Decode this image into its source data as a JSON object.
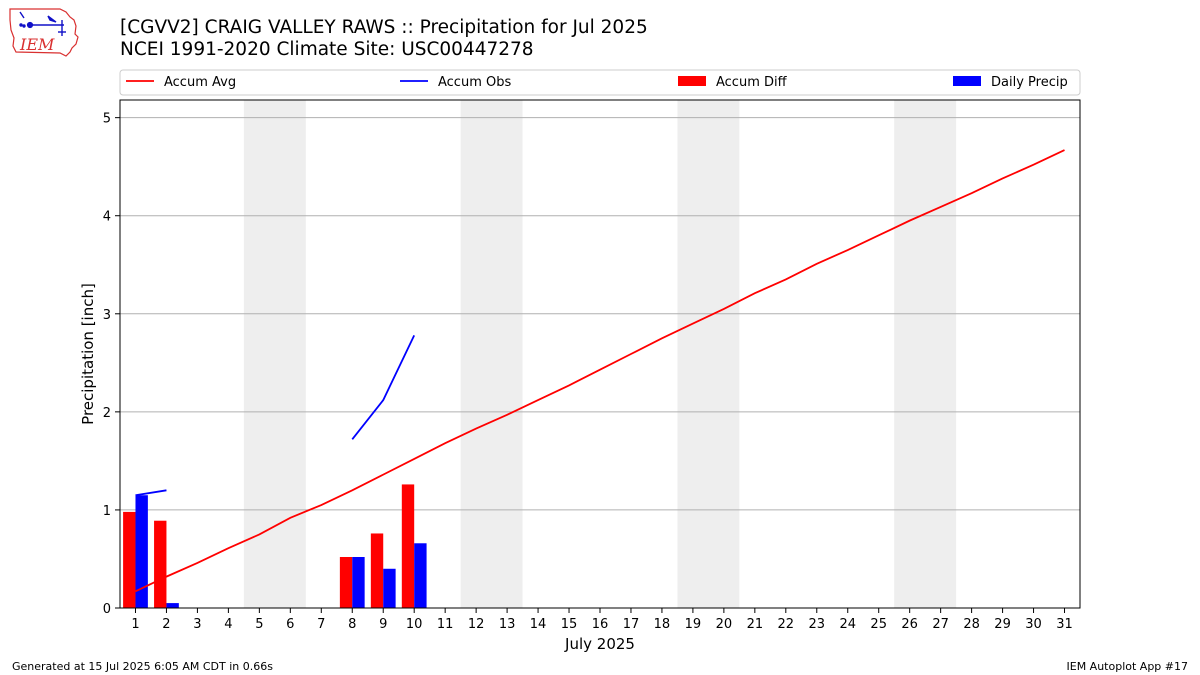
{
  "header": {
    "title_line1": "[CGVV2] CRAIG VALLEY RAWS :: Precipitation for Jul 2025",
    "title_line2": "NCEI 1991-2020 Climate Site: USC00447278",
    "logo_text": "IEM"
  },
  "footer": {
    "left": "Generated at 15 Jul 2025 6:05 AM CDT in 0.66s",
    "right": "IEM Autoplot App #17"
  },
  "colors": {
    "accum_avg": "#ff0000",
    "accum_obs": "#0000ff",
    "accum_diff": "#ff0000",
    "daily_precip": "#0000ff",
    "weekend_shade": "#eeeeee",
    "grid": "#b0b0b0"
  },
  "chart_data": {
    "type": "line",
    "xlabel": "July 2025",
    "ylabel": "Precipitation [inch]",
    "xlim": [
      0.5,
      31.5
    ],
    "ylim": [
      0,
      5.18
    ],
    "x_ticks": [
      1,
      2,
      3,
      4,
      5,
      6,
      7,
      8,
      9,
      10,
      11,
      12,
      13,
      14,
      15,
      16,
      17,
      18,
      19,
      20,
      21,
      22,
      23,
      24,
      25,
      26,
      27,
      28,
      29,
      30,
      31
    ],
    "x_tick_labels": [
      "1",
      "2",
      "3",
      "4",
      "5",
      "6",
      "7",
      "8",
      "9",
      "10",
      "11",
      "12",
      "13",
      "14",
      "15",
      "16",
      "17",
      "18",
      "19",
      "20",
      "21",
      "22",
      "23",
      "24",
      "25",
      "26",
      "27",
      "28",
      "29",
      "30",
      "31"
    ],
    "y_ticks": [
      0,
      1,
      2,
      3,
      4,
      5
    ],
    "y_tick_labels": [
      "0",
      "1",
      "2",
      "3",
      "4",
      "5"
    ],
    "grid": "y",
    "legend_placement": "top",
    "weekend_shading": [
      [
        4.5,
        6.5
      ],
      [
        11.5,
        13.5
      ],
      [
        18.5,
        20.5
      ],
      [
        25.5,
        27.5
      ]
    ],
    "legend": [
      "Accum Avg",
      "Accum Obs",
      "Accum Diff",
      "Daily Precip"
    ],
    "series": [
      {
        "name": "Accum Avg",
        "type": "line",
        "color": "#ff0000",
        "x": [
          1,
          2,
          3,
          4,
          5,
          6,
          7,
          8,
          9,
          10,
          11,
          12,
          13,
          14,
          15,
          16,
          17,
          18,
          19,
          20,
          21,
          22,
          23,
          24,
          25,
          26,
          27,
          28,
          29,
          30,
          31
        ],
        "values": [
          0.17,
          0.32,
          0.46,
          0.61,
          0.75,
          0.92,
          1.05,
          1.2,
          1.36,
          1.52,
          1.68,
          1.83,
          1.97,
          2.12,
          2.27,
          2.43,
          2.59,
          2.75,
          2.9,
          3.05,
          3.21,
          3.35,
          3.51,
          3.65,
          3.8,
          3.95,
          4.09,
          4.23,
          4.38,
          4.52,
          4.67
        ]
      },
      {
        "name": "Accum Obs",
        "type": "line",
        "color": "#0000ff",
        "segments": [
          {
            "x": [
              1,
              2
            ],
            "values": [
              1.15,
              1.2
            ]
          },
          {
            "x": [
              8,
              9,
              10
            ],
            "values": [
              1.72,
              2.12,
              2.78
            ]
          }
        ]
      },
      {
        "name": "Accum Diff",
        "type": "bar",
        "color": "#ff0000",
        "x": [
          1,
          2,
          8,
          9,
          10
        ],
        "values": [
          0.98,
          0.89,
          0.52,
          0.76,
          1.26
        ]
      },
      {
        "name": "Daily Precip",
        "type": "bar",
        "color": "#0000ff",
        "x": [
          1,
          2,
          8,
          9,
          10
        ],
        "values": [
          1.15,
          0.05,
          0.52,
          0.4,
          0.66
        ]
      }
    ]
  }
}
